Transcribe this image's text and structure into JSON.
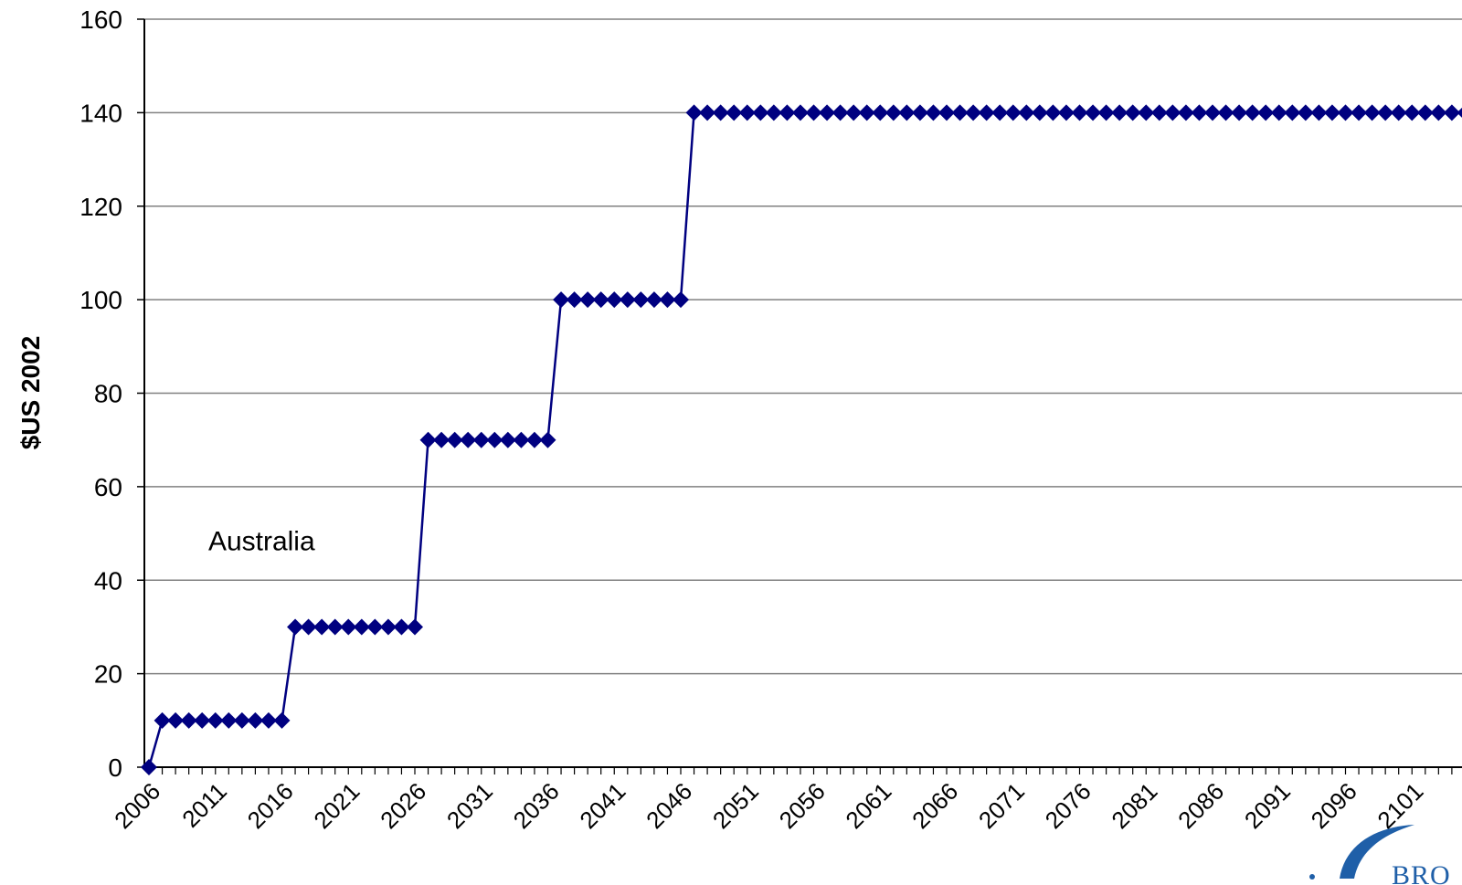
{
  "chart_data": {
    "type": "line",
    "ylabel": "$US 2002",
    "xlabel": "",
    "ylim": [
      0,
      160
    ],
    "yticks": [
      0,
      20,
      40,
      60,
      80,
      100,
      120,
      140,
      160
    ],
    "xlim": [
      2006,
      2112
    ],
    "xtick_labels": [
      "2006",
      "2011",
      "2016",
      "2021",
      "2026",
      "2031",
      "2036",
      "2041",
      "2046",
      "2051",
      "2056",
      "2061",
      "2066",
      "2071",
      "2076",
      "2081",
      "2086",
      "2091",
      "2096",
      "2101"
    ],
    "grid": true,
    "annotations": [
      {
        "text": "Australia",
        "x": 2015,
        "y": 46
      }
    ],
    "series": [
      {
        "color": "#000080",
        "marker": "diamond",
        "steps": [
          {
            "from": 2006,
            "to": 2006,
            "value": 0
          },
          {
            "from": 2007,
            "to": 2016,
            "value": 10
          },
          {
            "from": 2017,
            "to": 2026,
            "value": 30
          },
          {
            "from": 2027,
            "to": 2036,
            "value": 70
          },
          {
            "from": 2037,
            "to": 2046,
            "value": 100
          },
          {
            "from": 2047,
            "to": 2112,
            "value": 140
          }
        ]
      }
    ]
  },
  "logo": {
    "text": "BRO",
    "color": "#1f5fa8"
  }
}
